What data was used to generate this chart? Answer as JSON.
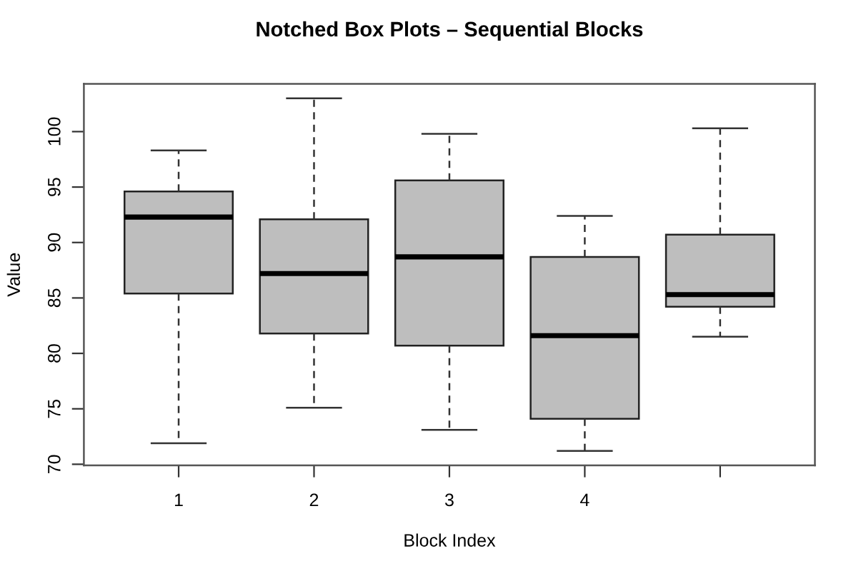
{
  "chart_data": {
    "type": "box",
    "title": "Notched Box Plots – Sequential Blocks",
    "xlabel": "Block Index",
    "ylabel": "Value",
    "categories": [
      "1",
      "2",
      "3",
      "4",
      null
    ],
    "series": [
      {
        "color": "#bebebe",
        "boxes": [
          {
            "low": 71.9,
            "q1": 85.4,
            "median": 92.3,
            "q3": 94.6,
            "high": 98.3
          },
          {
            "low": 75.1,
            "q1": 81.8,
            "median": 87.2,
            "q3": 92.1,
            "high": 103.0
          },
          {
            "low": 73.1,
            "q1": 80.7,
            "median": 88.7,
            "q3": 95.6,
            "high": 99.8
          },
          {
            "low": 71.2,
            "q1": 74.1,
            "median": 81.6,
            "q3": 88.7,
            "high": 92.4
          },
          {
            "low": 81.5,
            "q1": 84.2,
            "median": 85.3,
            "q3": 90.7,
            "high": 100.3
          }
        ]
      }
    ],
    "ylim": [
      69.9,
      104.3
    ],
    "yticks": [
      70,
      75,
      80,
      85,
      90,
      95,
      100
    ]
  }
}
